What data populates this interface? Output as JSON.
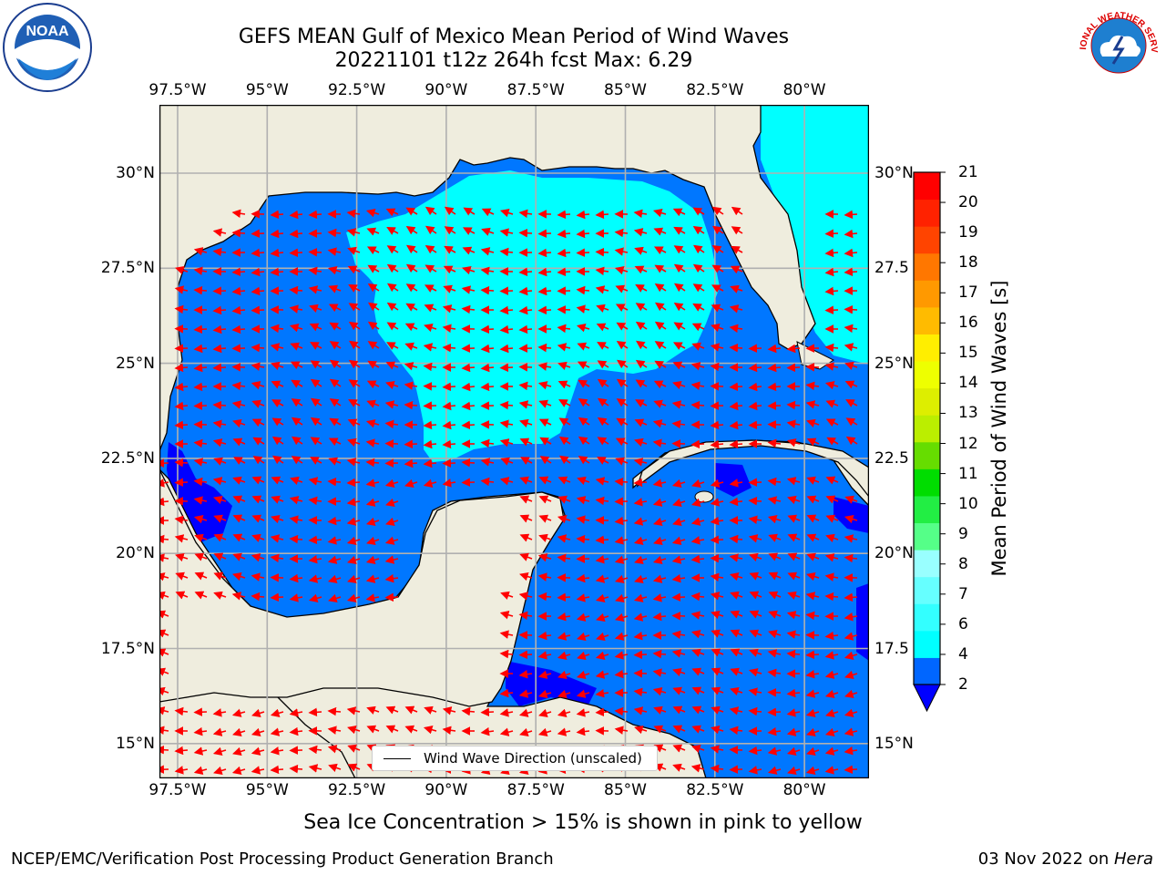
{
  "title_line1": "GEFS MEAN Gulf of Mexico Mean Period of Wind Waves",
  "title_line2": "20221101 t12z 264h fcst   Max: 6.29",
  "lon_ticks": [
    "97.5°W",
    "95°W",
    "92.5°W",
    "90°W",
    "87.5°W",
    "85°W",
    "82.5°W",
    "80°W"
  ],
  "lat_ticks": [
    "30°N",
    "27.5°N",
    "25°N",
    "22.5°N",
    "20°N",
    "17.5°N",
    "15°N"
  ],
  "lat_ticks_right": [
    "30°N",
    "27.5",
    "25°N",
    "22.5",
    "20°N",
    "17.5",
    "15°N"
  ],
  "legend_label": "Wind Wave Direction (unscaled)",
  "colorbar": {
    "title": "Mean Period of Wind Waves [s]",
    "levels": [
      "2",
      "4",
      "6",
      "7",
      "8",
      "9",
      "10",
      "11",
      "12",
      "13",
      "14",
      "15",
      "16",
      "17",
      "18",
      "19",
      "20",
      "21"
    ],
    "colors": [
      "#0066ff",
      "#00ffff",
      "#33ffff",
      "#66ffff",
      "#99ffff",
      "#55ff88",
      "#22ee44",
      "#00dd00",
      "#66dd00",
      "#bbee00",
      "#ddee00",
      "#eeff00",
      "#ffee00",
      "#ffbb00",
      "#ff9900",
      "#ff7700",
      "#ff4400",
      "#ff2200",
      "#ff0000"
    ],
    "under_color": "#0000ff"
  },
  "colors": {
    "land": "#efedde",
    "ocean_low": "#0000ff",
    "ocean_2_4": "#0077ff",
    "ocean_4_6": "#00ffff",
    "arrows": "#ff0000",
    "grid": "#b0b0b0"
  },
  "note": "Sea Ice Concentration > 15% is shown in pink to yellow",
  "footer_left": "NCEP/EMC/Verification Post Processing Product Generation Branch",
  "footer_date": "03 Nov 2022 on ",
  "footer_host": "Hera",
  "noaa_logo_text": "NOAA",
  "nws_logo_text": "NATIONAL WEATHER SERVICE"
}
